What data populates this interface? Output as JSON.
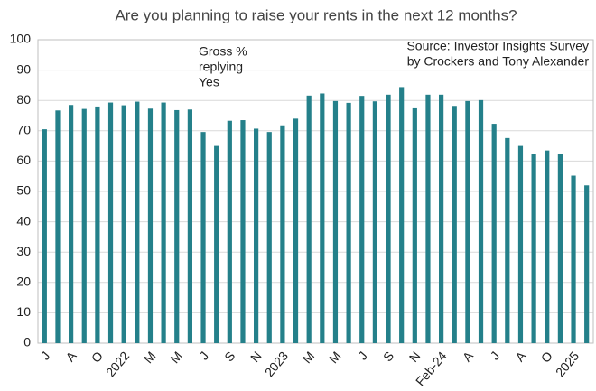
{
  "chart_data": {
    "type": "bar",
    "title": "Are you planning to raise your rents in the next 12 months?",
    "annotations": [
      {
        "lines": [
          "Gross %",
          "replying",
          "Yes"
        ],
        "corner": "top-center"
      },
      {
        "lines": [
          "Source: Investor Insights Survey",
          "by Crockers and Tony Alexander"
        ],
        "corner": "top-right"
      }
    ],
    "categories": [
      "J",
      null,
      "A",
      null,
      "O",
      null,
      "2022",
      null,
      "M",
      null,
      "M",
      null,
      "J",
      null,
      "S",
      null,
      "N",
      null,
      "2023",
      null,
      "M",
      null,
      "M",
      null,
      "J",
      null,
      "S",
      null,
      "N",
      null,
      "Feb-24",
      null,
      "A",
      null,
      "J",
      null,
      "A",
      null,
      "O",
      null,
      "2025",
      null
    ],
    "values": [
      70.5,
      76.7,
      78.5,
      77.2,
      78,
      79.3,
      78.4,
      79.6,
      77.3,
      79.3,
      76.8,
      77,
      69.6,
      65,
      73.3,
      73.5,
      70.7,
      69.6,
      71.8,
      74,
      81.6,
      82.3,
      79.8,
      79.2,
      81.5,
      79.7,
      81.9,
      84.4,
      77.4,
      81.9,
      81.9,
      78.2,
      79.8,
      80.1,
      72.3,
      67.6,
      65,
      62.5,
      63.5,
      62.5,
      55.2,
      52
    ],
    "color": "#24808a",
    "ylim": [
      0,
      100
    ],
    "yticks": [
      0,
      10,
      20,
      30,
      40,
      50,
      60,
      70,
      80,
      90,
      100
    ],
    "grid": true
  }
}
